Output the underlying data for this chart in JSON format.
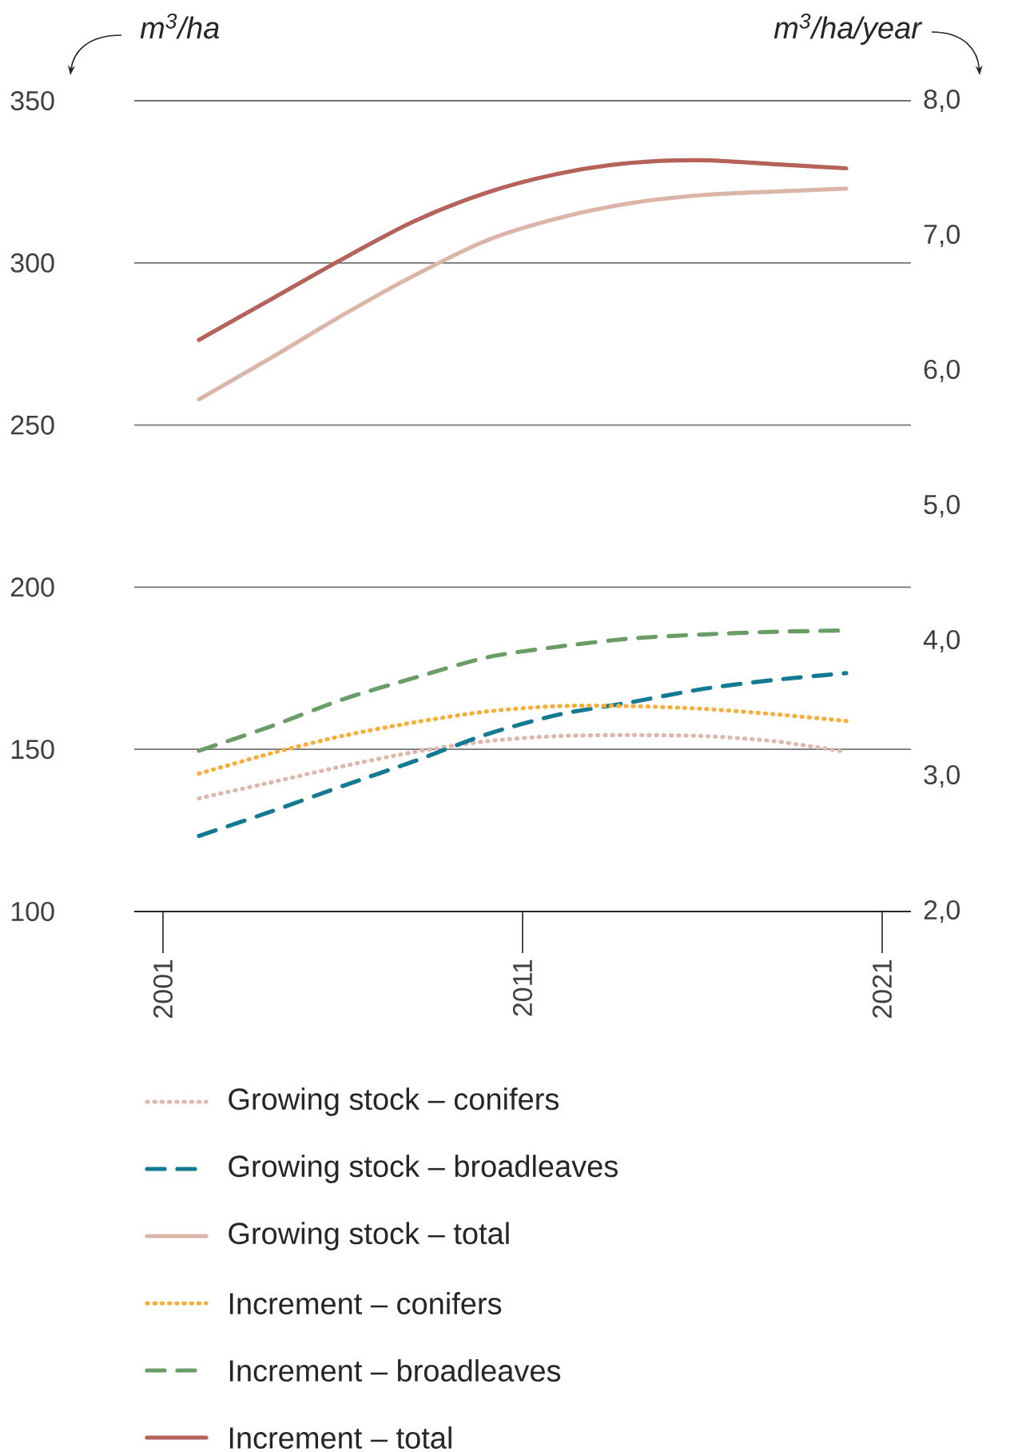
{
  "chart_data": {
    "type": "line",
    "xlabel": null,
    "ylabel": "m$^{3}$/ha",
    "y2label": "m$^{3}$/ha/year",
    "x": [
      2002,
      2004,
      2006,
      2008,
      2010,
      2012,
      2014,
      2016,
      2018,
      2020
    ],
    "xlim": [
      2000.2,
      2021.8
    ],
    "xticks": [
      2001,
      2011,
      2021
    ],
    "ylim": [
      100,
      350
    ],
    "yticks": [
      100,
      150,
      200,
      250,
      300,
      350
    ],
    "y2lim": [
      2,
      8
    ],
    "y2ticks": [
      {
        "value": 2,
        "label": "2,0"
      },
      {
        "value": 3,
        "label": "3,0"
      },
      {
        "value": 4,
        "label": "4,0"
      },
      {
        "value": 5,
        "label": "5,0"
      },
      {
        "value": 6,
        "label": "6,0"
      },
      {
        "value": 7,
        "label": "7,0"
      },
      {
        "value": 8,
        "label": "8,0"
      }
    ],
    "grid": "y",
    "legend": "bottom",
    "series": [
      {
        "name": "Growing stock – conifers",
        "color": "#dcb8ad",
        "line_style": "dotted",
        "values": [
          134.9,
          139.8,
          144.8,
          149.2,
          152.5,
          154.1,
          154.4,
          154.1,
          152.5,
          149.2
        ]
      },
      {
        "name": "Growing stock – broadleaves",
        "color": "#147a93",
        "line_style": "dashed",
        "values": [
          123.3,
          130.8,
          138.7,
          146.4,
          154.6,
          160.7,
          164.5,
          168.6,
          171.4,
          173.5
        ]
      },
      {
        "name": "Growing stock – total",
        "color": "#dcb5a9",
        "line_style": "solid",
        "values": [
          257.9,
          270.7,
          283.9,
          296.2,
          306.9,
          313.8,
          318.4,
          320.9,
          322.0,
          322.9
        ]
      },
      {
        "name": "Increment – conifers",
        "color": "#f9ae3b",
        "line_style": "dotted",
        "axis": "y2",
        "values": [
          3.02,
          3.17,
          3.3,
          3.4,
          3.48,
          3.52,
          3.52,
          3.5,
          3.46,
          3.41
        ]
      },
      {
        "name": "Increment – broadleaves",
        "color": "#6a9d65",
        "line_style": "dashed",
        "axis": "y2",
        "values": [
          3.19,
          3.37,
          3.57,
          3.73,
          3.88,
          3.96,
          4.02,
          4.05,
          4.07,
          4.08
        ]
      },
      {
        "name": "Increment – total",
        "color": "#b5625a",
        "line_style": "solid",
        "axis": "y2",
        "values": [
          6.23,
          6.53,
          6.83,
          7.11,
          7.32,
          7.46,
          7.54,
          7.56,
          7.53,
          7.5
        ]
      }
    ]
  }
}
